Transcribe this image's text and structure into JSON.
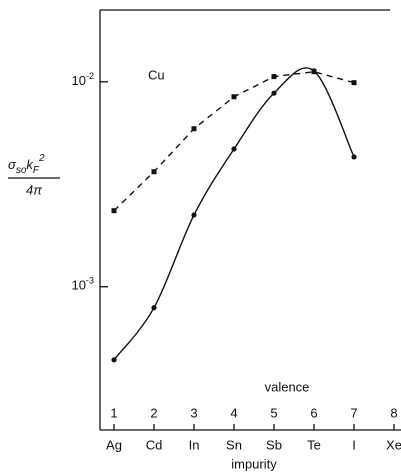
{
  "chart_data": {
    "type": "line",
    "annotation": "Cu",
    "ylabel": {
      "numerator": [
        "σ",
        "so",
        "k",
        "F",
        "2"
      ],
      "denominator": "4π"
    },
    "xlabel_top": "valence",
    "xlabel": "impurity",
    "categories": [
      "Ag",
      "Cd",
      "In",
      "Sn",
      "Sb",
      "Te",
      "I",
      "Xe"
    ],
    "valence": [
      1,
      2,
      3,
      4,
      5,
      6,
      7,
      8
    ],
    "log_y": true,
    "ylim": [
      0.0002,
      0.0224
    ],
    "yticks": [
      {
        "value": 0.001,
        "label": "10-3"
      },
      {
        "value": 0.01,
        "label": "10-2"
      }
    ],
    "series": [
      {
        "style": "dashed",
        "marker": "square",
        "color": "#111111",
        "values": [
          0.00235,
          0.00364,
          0.0059,
          0.00845,
          0.0106,
          0.0112,
          0.0099,
          null
        ]
      },
      {
        "style": "solid",
        "marker": "circle",
        "color": "#111111",
        "values": [
          0.00044,
          0.00079,
          0.00224,
          0.0047,
          0.0088,
          0.0113,
          0.0043,
          null
        ]
      }
    ]
  }
}
